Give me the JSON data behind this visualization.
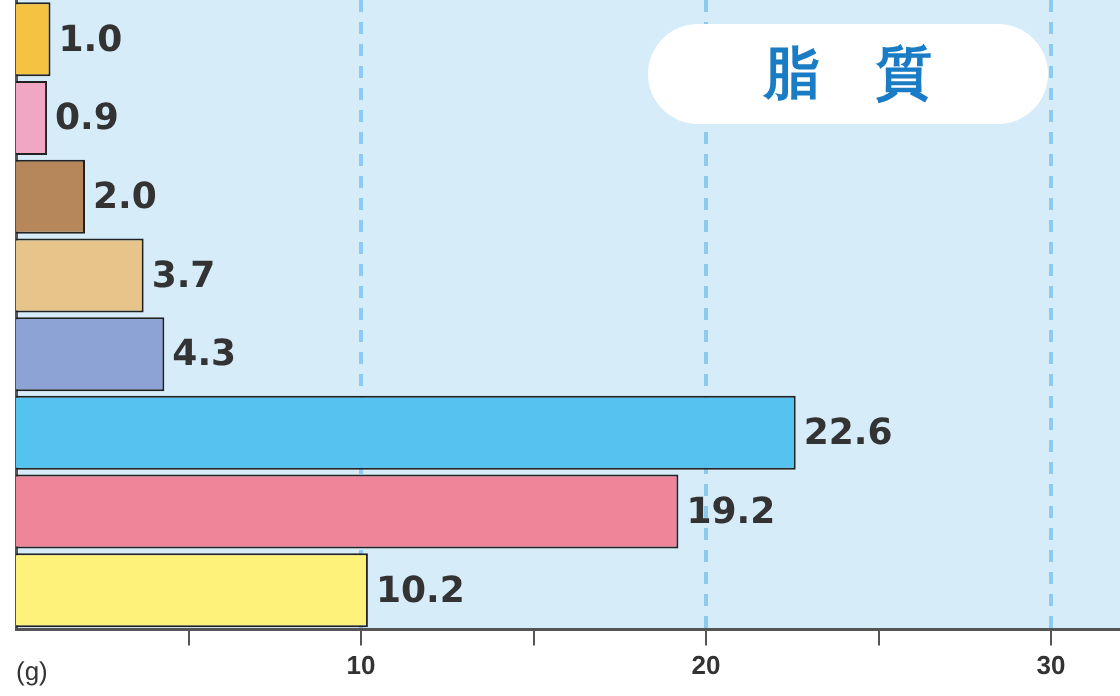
{
  "chart_data": {
    "type": "bar",
    "orientation": "horizontal",
    "title": "脂　質",
    "xlabel": "(g)",
    "categories": [
      null,
      null,
      null,
      null,
      null,
      null,
      null,
      null
    ],
    "values": [
      1.0,
      0.9,
      2.0,
      3.7,
      4.3,
      22.6,
      19.2,
      10.2
    ],
    "colors": [
      "#f5c242",
      "#f1a7c4",
      "#b5875a",
      "#e6c48a",
      "#8da3d6",
      "#55c3f0",
      "#ef8599",
      "#fff27a"
    ],
    "xlim": [
      0,
      32
    ],
    "xticks": [
      {
        "value": 5,
        "label": null
      },
      10,
      {
        "value": 15,
        "label": null
      },
      20,
      {
        "value": 25,
        "label": null
      },
      30
    ],
    "value_labels": [
      "1.0",
      "0.9",
      "2.0",
      "3.7",
      "4.3",
      "22.6",
      "19.2",
      "10.2"
    ],
    "grid": "x",
    "legend": false
  }
}
